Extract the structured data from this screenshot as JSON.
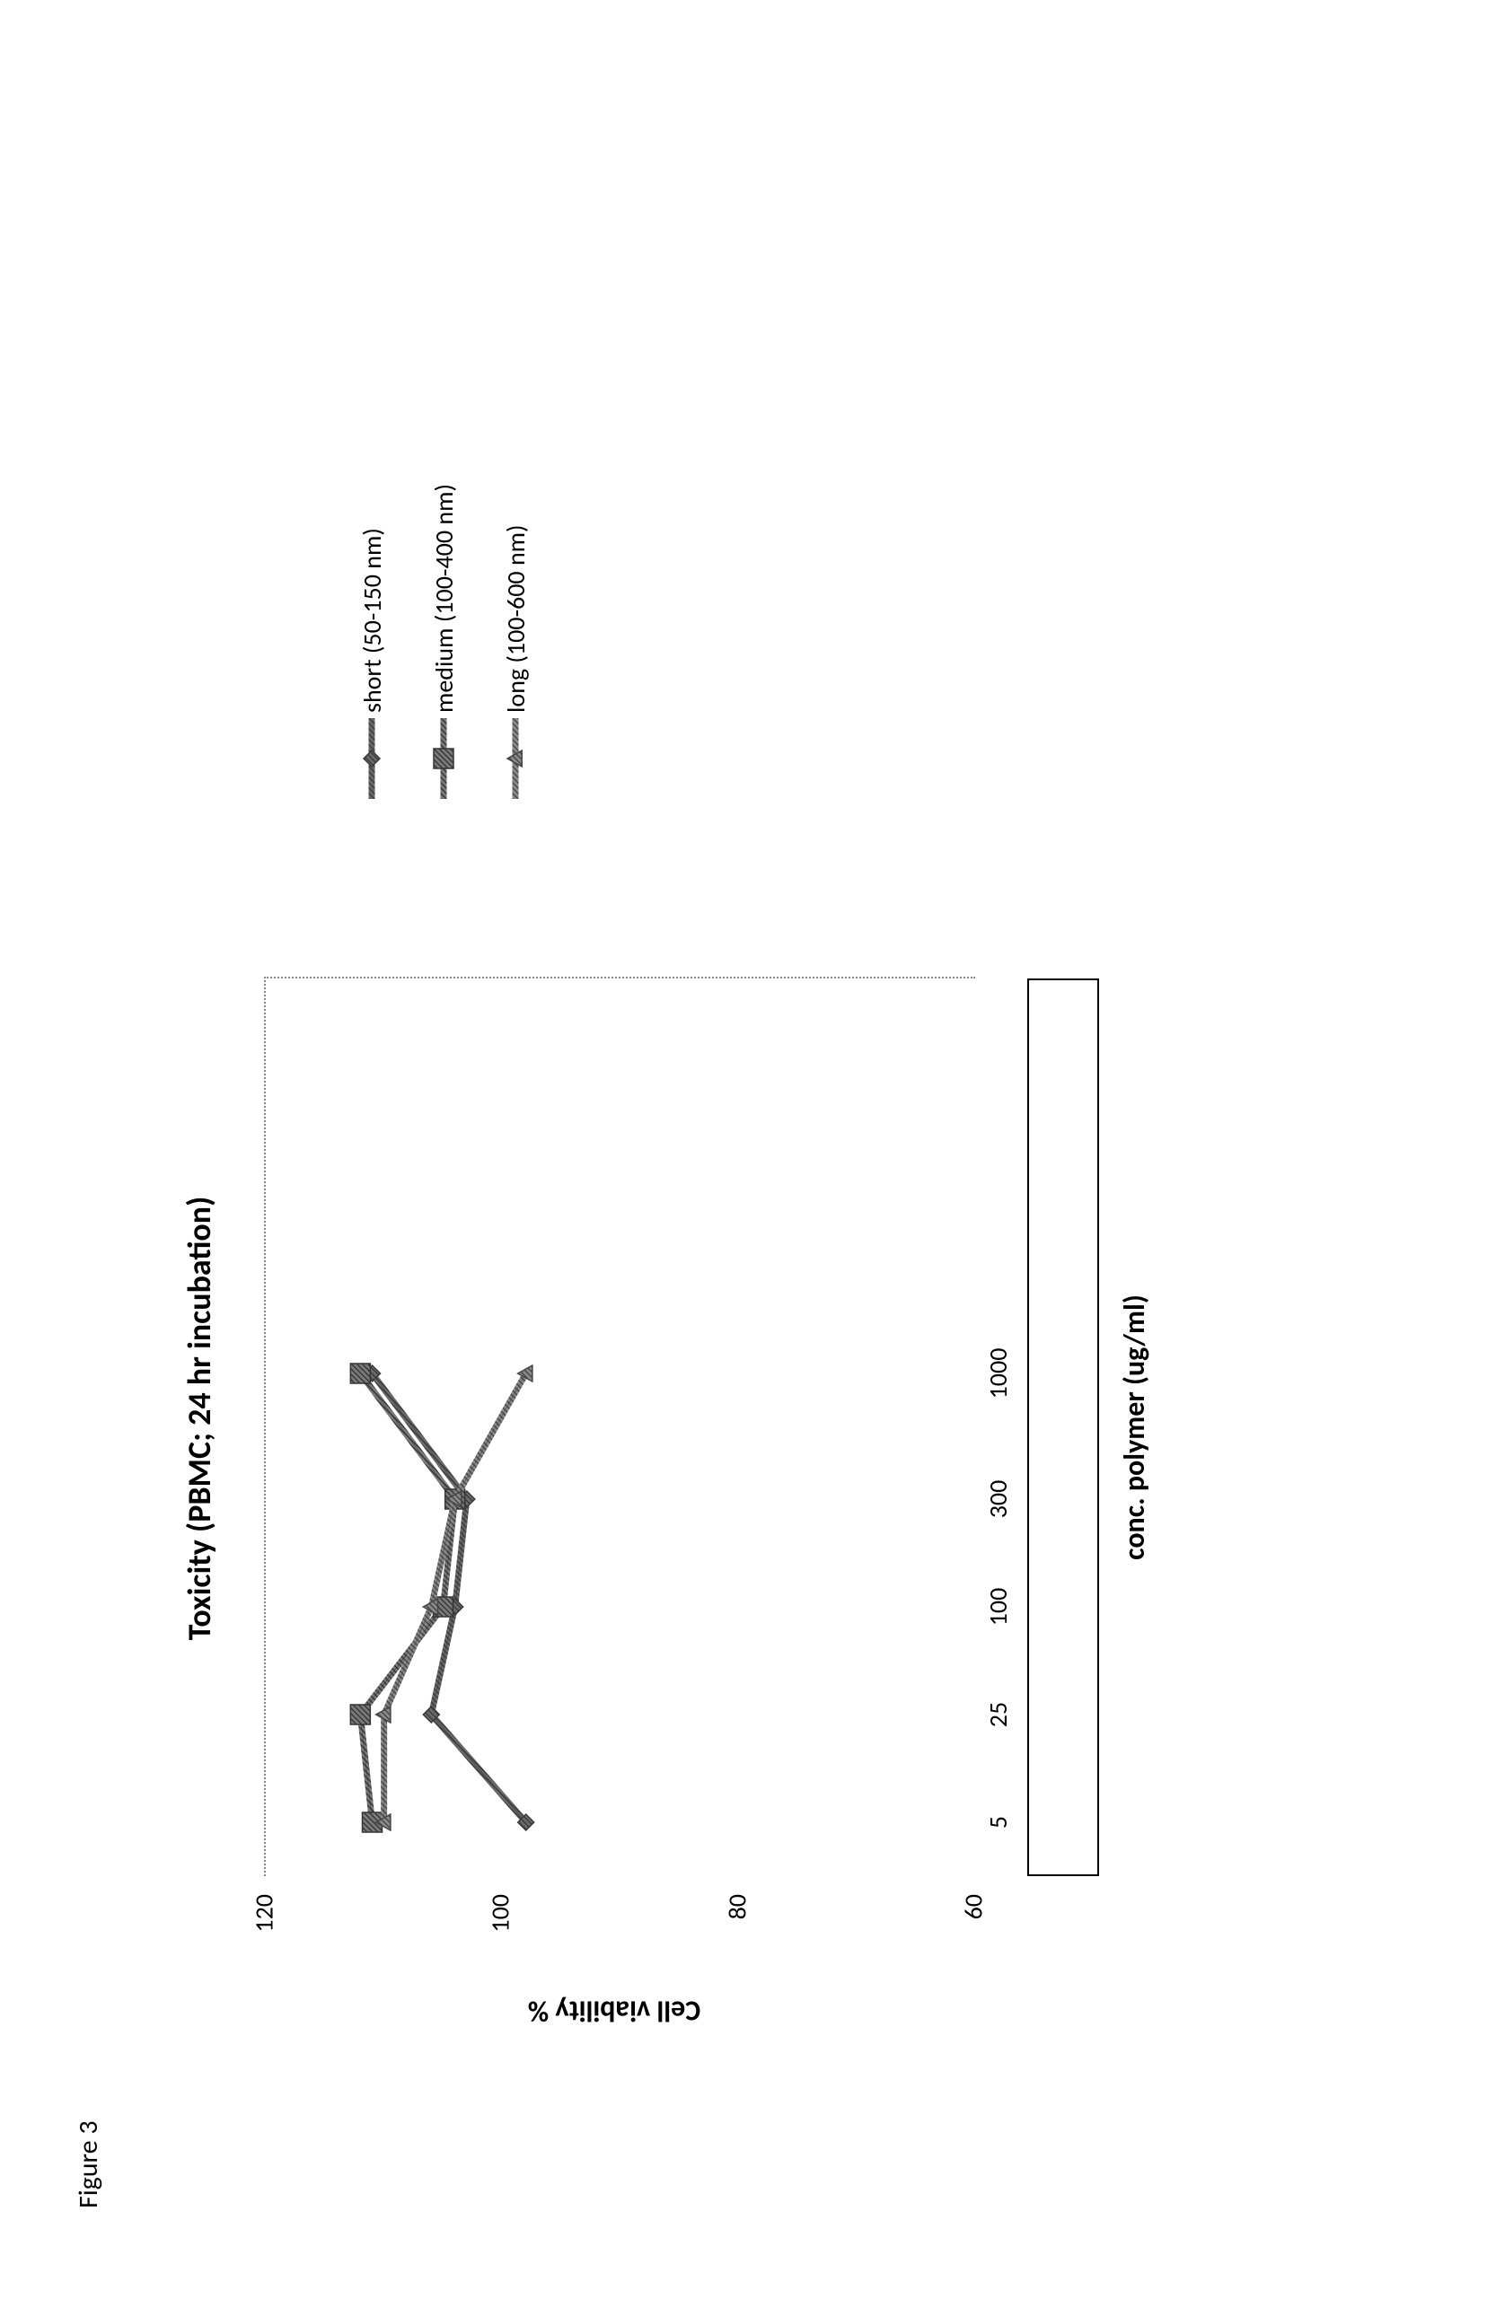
{
  "figure_label": "Figure 3",
  "chart": {
    "type": "line",
    "title": "Toxicity (PBMC; 24 hr incubation)",
    "title_fontsize": 36,
    "xlabel": "conc. polymer (ug/ml)",
    "ylabel": "Cell viability %",
    "label_fontsize": 32,
    "tick_fontsize": 28,
    "background_color": "#ffffff",
    "frame_dotted_color": "#888888",
    "xaxis_box_border_color": "#000000",
    "x_scale": "categorical_log_like",
    "x_categories": [
      "5",
      "25",
      "100",
      "300",
      "1000",
      ""
    ],
    "x_positions": [
      0.06,
      0.18,
      0.3,
      0.42,
      0.56,
      0.97
    ],
    "ylim": [
      60,
      120
    ],
    "yticks": [
      60,
      80,
      100,
      120
    ],
    "line_width": 4,
    "marker_size": 18,
    "series": [
      {
        "name": "short (50-150 nm)",
        "color": "#6a6a6a",
        "dark_color": "#3a3a3a",
        "marker": "diamond",
        "values": [
          98,
          106,
          104,
          103,
          111
        ]
      },
      {
        "name": "medium (100-400 nm)",
        "color": "#7a7a7a",
        "dark_color": "#353535",
        "marker": "square",
        "values": [
          111,
          112,
          105,
          104,
          112
        ]
      },
      {
        "name": "long (100-600 nm)",
        "color": "#8a8a8a",
        "dark_color": "#454545",
        "marker": "triangle",
        "values": [
          110,
          110,
          106,
          104,
          98
        ]
      }
    ]
  }
}
